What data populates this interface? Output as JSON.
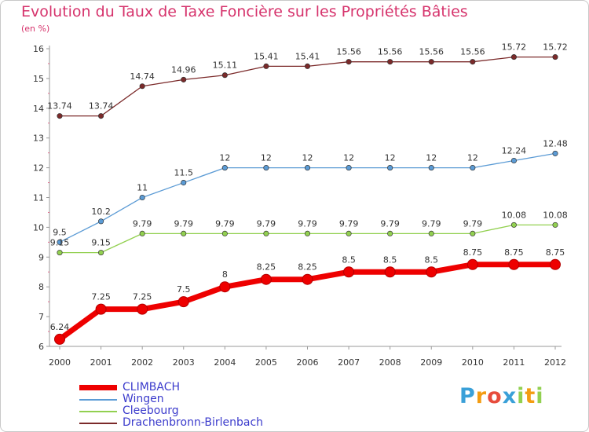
{
  "header": {
    "title": "Evolution du Taux de Taxe Foncière sur les Propriétés Bâties",
    "subtitle": "(en %)"
  },
  "chart_data": {
    "type": "line",
    "title": "Evolution du Taux de Taxe Foncière sur les Propriétés Bâties",
    "ylabel": "(en %)",
    "xlabel": "",
    "x": [
      "2000",
      "2001",
      "2002",
      "2003",
      "2004",
      "2005",
      "2006",
      "2007",
      "2008",
      "2009",
      "2010",
      "2011",
      "2012"
    ],
    "ylim": [
      6,
      16
    ],
    "yticks": [
      6,
      7,
      8,
      9,
      10,
      11,
      12,
      13,
      14,
      15,
      16
    ],
    "grid": false,
    "legend_position": "bottom-left",
    "series": [
      {
        "name": "Drachenbronn-Birlenbach",
        "color": "#7b2a2a",
        "values": [
          13.74,
          13.74,
          14.74,
          14.96,
          15.11,
          15.41,
          15.41,
          15.56,
          15.56,
          15.56,
          15.56,
          15.72,
          15.72
        ],
        "labels": [
          "13.74",
          "13.74",
          "14.74",
          "14.96",
          "15.11",
          "15.41",
          "15.41",
          "15.56",
          "15.56",
          "15.56",
          "15.56",
          "15.72",
          "15.72"
        ]
      },
      {
        "name": "Wingen",
        "color": "#5b9bd5",
        "values": [
          9.5,
          10.2,
          11,
          11.5,
          12,
          12,
          12,
          12,
          12,
          12,
          12,
          12.24,
          12.48
        ],
        "labels": [
          "9.5",
          "10.2",
          "11",
          "11.5",
          "12",
          "12",
          "12",
          "12",
          "12",
          "12",
          "12",
          "12.24",
          "12.48"
        ]
      },
      {
        "name": "Cleebourg",
        "color": "#92d050",
        "values": [
          9.15,
          9.15,
          9.79,
          9.79,
          9.79,
          9.79,
          9.79,
          9.79,
          9.79,
          9.79,
          9.79,
          10.08,
          10.08
        ],
        "labels": [
          "9.15",
          "9.15",
          "9.79",
          "9.79",
          "9.79",
          "9.79",
          "9.79",
          "9.79",
          "9.79",
          "9.79",
          "9.79",
          "10.08",
          "10.08"
        ]
      },
      {
        "name": "CLIMBACH",
        "color": "#ee0000",
        "values": [
          6.24,
          7.25,
          7.25,
          7.5,
          8,
          8.25,
          8.25,
          8.5,
          8.5,
          8.5,
          8.75,
          8.75,
          8.75
        ],
        "labels": [
          "6.24",
          "7.25",
          "7.25",
          "7.5",
          "8",
          "8.25",
          "8.25",
          "8.5",
          "8.5",
          "8.5",
          "8.75",
          "8.75",
          "8.75"
        ]
      }
    ]
  },
  "legend": {
    "items": [
      {
        "name": "CLIMBACH",
        "color": "#ee0000"
      },
      {
        "name": "Wingen",
        "color": "#5b9bd5"
      },
      {
        "name": "Cleebourg",
        "color": "#92d050"
      },
      {
        "name": "Drachenbronn-Birlenbach",
        "color": "#7b2a2a"
      }
    ]
  },
  "logo": {
    "letters": [
      "P",
      "r",
      "o",
      "x",
      "i",
      "t",
      "i"
    ],
    "colors": [
      "#3aa0d8",
      "#f39c12",
      "#e74c3c",
      "#3aa0d8",
      "#92d050",
      "#f39c12",
      "#92d050"
    ]
  }
}
